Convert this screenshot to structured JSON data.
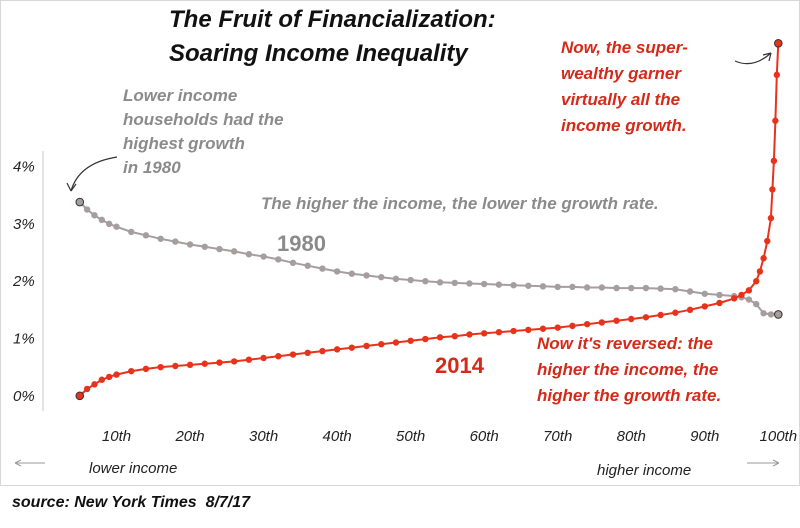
{
  "chart_data": {
    "type": "line",
    "title_lines": [
      "The Fruit of Financialization:",
      "Soaring Income Inequality"
    ],
    "y_tick_labels": [
      "0%",
      "1%",
      "2%",
      "3%",
      "4%"
    ],
    "y_ticks": [
      0,
      1,
      2,
      3,
      4
    ],
    "x_tick_labels": [
      "10th",
      "20th",
      "30th",
      "40th",
      "50th",
      "60th",
      "70th",
      "80th",
      "90th",
      "100th"
    ],
    "x_ticks": [
      10,
      20,
      30,
      40,
      50,
      60,
      70,
      80,
      90,
      100
    ],
    "xlim": [
      0,
      102
    ],
    "ylim": [
      -0.3,
      6.4
    ],
    "x_axis_left_label": "lower income",
    "x_axis_right_label": "higher income",
    "series": [
      {
        "name": "1980",
        "color": "#a69d9f",
        "x": [
          5,
          6,
          7,
          8,
          9,
          10,
          12,
          14,
          16,
          18,
          20,
          22,
          24,
          26,
          28,
          30,
          32,
          34,
          36,
          38,
          40,
          42,
          44,
          46,
          48,
          50,
          52,
          54,
          56,
          58,
          60,
          62,
          64,
          66,
          68,
          70,
          72,
          74,
          76,
          78,
          80,
          82,
          84,
          86,
          88,
          90,
          92,
          94,
          95,
          96,
          97,
          98,
          99,
          100
        ],
        "y": [
          3.38,
          3.25,
          3.15,
          3.07,
          3.0,
          2.95,
          2.86,
          2.8,
          2.74,
          2.69,
          2.64,
          2.6,
          2.56,
          2.52,
          2.47,
          2.43,
          2.38,
          2.32,
          2.27,
          2.22,
          2.17,
          2.13,
          2.1,
          2.07,
          2.04,
          2.02,
          2.0,
          1.98,
          1.97,
          1.96,
          1.95,
          1.94,
          1.93,
          1.92,
          1.91,
          1.9,
          1.9,
          1.89,
          1.89,
          1.88,
          1.88,
          1.88,
          1.87,
          1.86,
          1.82,
          1.78,
          1.76,
          1.74,
          1.72,
          1.68,
          1.6,
          1.44,
          1.42,
          1.42
        ]
      },
      {
        "name": "2014",
        "color": "#e8331c",
        "x": [
          5,
          6,
          7,
          8,
          9,
          10,
          12,
          14,
          16,
          18,
          20,
          22,
          24,
          26,
          28,
          30,
          32,
          34,
          36,
          38,
          40,
          42,
          44,
          46,
          48,
          50,
          52,
          54,
          56,
          58,
          60,
          62,
          64,
          66,
          68,
          70,
          72,
          74,
          76,
          78,
          80,
          82,
          84,
          86,
          88,
          90,
          92,
          94,
          95,
          96,
          97,
          97.5,
          98,
          98.5,
          99,
          99.2,
          99.4,
          99.6,
          99.8,
          100
        ],
        "y": [
          0.0,
          0.12,
          0.2,
          0.28,
          0.33,
          0.37,
          0.43,
          0.47,
          0.5,
          0.52,
          0.54,
          0.56,
          0.58,
          0.6,
          0.63,
          0.66,
          0.69,
          0.72,
          0.75,
          0.78,
          0.81,
          0.84,
          0.87,
          0.9,
          0.93,
          0.96,
          0.99,
          1.02,
          1.04,
          1.07,
          1.09,
          1.11,
          1.13,
          1.15,
          1.17,
          1.19,
          1.22,
          1.25,
          1.28,
          1.31,
          1.34,
          1.37,
          1.41,
          1.45,
          1.5,
          1.56,
          1.62,
          1.7,
          1.76,
          1.84,
          2.0,
          2.17,
          2.4,
          2.7,
          3.1,
          3.6,
          4.1,
          4.8,
          5.6,
          6.15
        ]
      }
    ],
    "annotations": {
      "label_1980": "1980",
      "label_2014": "2014",
      "lower_income_note": [
        "Lower income",
        "households had the",
        "highest growth",
        "in 1980"
      ],
      "middle_note": "The higher the income, the lower the growth rate.",
      "super_wealthy_note": [
        "Now, the super-",
        "wealthy garner",
        "virtually all the",
        "income growth."
      ],
      "reversed_note": [
        "Now it's reversed: the",
        "higher the income, the",
        "higher the growth rate."
      ]
    },
    "grid": false,
    "legend": "none"
  },
  "source_text": "source: New York Times  8/7/17"
}
